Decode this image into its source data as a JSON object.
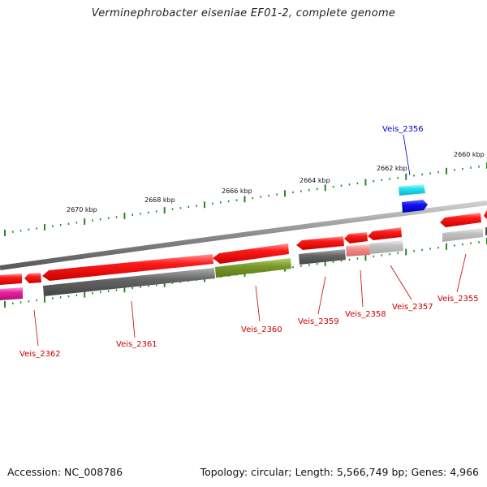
{
  "title": "Verminephrobacter eiseniae EF01-2, complete genome",
  "footer": {
    "accession": "Accession: NC_008786",
    "summary": "Topology: circular; Length: 5,566,749 bp; Genes: 4,966"
  },
  "colors": {
    "forward_label": "#0000cc",
    "reverse_label": "#cc0000",
    "tick": "#228b22",
    "backbone": "#888888"
  },
  "ruler": [
    {
      "label": "2660 kbp"
    },
    {
      "label": "2662 kbp"
    },
    {
      "label": "2664 kbp"
    },
    {
      "label": "2666 kbp"
    },
    {
      "label": "2668 kbp"
    },
    {
      "label": "2670 kbp"
    }
  ],
  "genes": [
    {
      "name": "Veis_2356",
      "strand": "forward"
    },
    {
      "name": "Veis_2355",
      "strand": "reverse"
    },
    {
      "name": "Veis_2357",
      "strand": "reverse"
    },
    {
      "name": "Veis_2358",
      "strand": "reverse"
    },
    {
      "name": "Veis_2359",
      "strand": "reverse"
    },
    {
      "name": "Veis_2360",
      "strand": "reverse"
    },
    {
      "name": "Veis_2361",
      "strand": "reverse"
    },
    {
      "name": "Veis_2362",
      "strand": "reverse"
    }
  ]
}
